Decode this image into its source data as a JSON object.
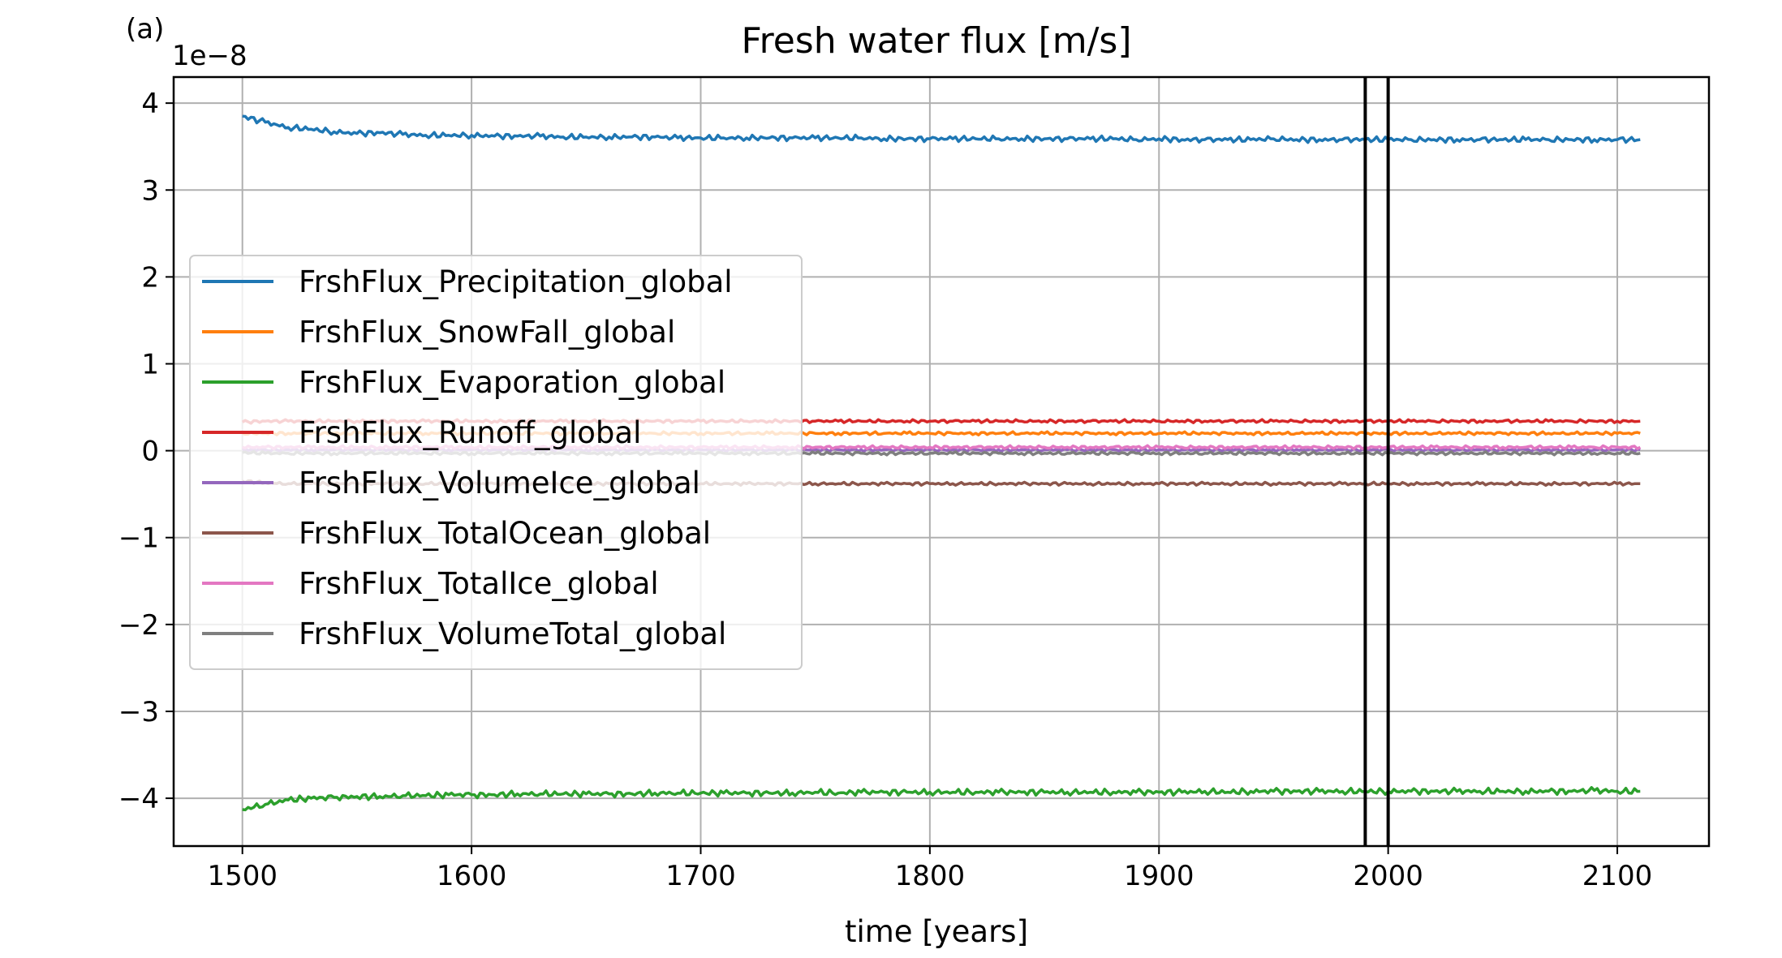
{
  "panel_label": "(a)",
  "chart_data": {
    "type": "line",
    "title": "Fresh water flux [m/s]",
    "xlabel": "time [years]",
    "ylabel": "",
    "y_scale_label": "1e−8",
    "xlim": [
      1470,
      2140
    ],
    "ylim": [
      -4.55,
      4.3
    ],
    "x_ticks": [
      1500,
      1600,
      1700,
      1800,
      1900,
      2000,
      2100
    ],
    "x_tick_labels": [
      "1500",
      "1600",
      "1700",
      "1800",
      "1900",
      "2000",
      "2100"
    ],
    "y_ticks": [
      -4,
      -3,
      -2,
      -1,
      0,
      1,
      2,
      3,
      4
    ],
    "y_tick_labels": [
      "−4",
      "−3",
      "−2",
      "−1",
      "0",
      "1",
      "2",
      "3",
      "4"
    ],
    "grid": true,
    "legend_position": "center-left",
    "vertical_lines": [
      1990,
      2000
    ],
    "x_start": 1500,
    "x_end": 2110,
    "series": [
      {
        "name": "FrshFlux_Precipitation_global",
        "color": "#1f77b4",
        "values": [
          3.85,
          3.78,
          3.72,
          3.7,
          3.67,
          3.65,
          3.66,
          3.64,
          3.63,
          3.63,
          3.63,
          3.62,
          3.62,
          3.62,
          3.61,
          3.61,
          3.61,
          3.61,
          3.61,
          3.6,
          3.6,
          3.6,
          3.6,
          3.6,
          3.6,
          3.6,
          3.6,
          3.6,
          3.59,
          3.59,
          3.59,
          3.59,
          3.59,
          3.59,
          3.59,
          3.59,
          3.59,
          3.59,
          3.59,
          3.58,
          3.59,
          3.58,
          3.58,
          3.58,
          3.58,
          3.59,
          3.58,
          3.58,
          3.58,
          3.58,
          3.58,
          3.58,
          3.58,
          3.58,
          3.58,
          3.58,
          3.58,
          3.58,
          3.58,
          3.58,
          3.58,
          3.58
        ]
      },
      {
        "name": "FrshFlux_SnowFall_global",
        "color": "#ff7f0e",
        "values": [
          0.2,
          0.2,
          0.2,
          0.2,
          0.2,
          0.2,
          0.2,
          0.2,
          0.2,
          0.2,
          0.2,
          0.2,
          0.2,
          0.2,
          0.2,
          0.2,
          0.2,
          0.2,
          0.2,
          0.2,
          0.2,
          0.2,
          0.2,
          0.2,
          0.2,
          0.2,
          0.2,
          0.2,
          0.2,
          0.2,
          0.2,
          0.2,
          0.2,
          0.2,
          0.2,
          0.2,
          0.2,
          0.2,
          0.2,
          0.2,
          0.2,
          0.2,
          0.2,
          0.2,
          0.2,
          0.2,
          0.2,
          0.2,
          0.2,
          0.2,
          0.2,
          0.2,
          0.2,
          0.2,
          0.2,
          0.2,
          0.2,
          0.2,
          0.2,
          0.2,
          0.2,
          0.2
        ]
      },
      {
        "name": "FrshFlux_Evaporation_global",
        "color": "#2ca02c",
        "values": [
          -4.13,
          -4.07,
          -4.02,
          -4.0,
          -3.99,
          -3.98,
          -3.98,
          -3.97,
          -3.97,
          -3.96,
          -3.96,
          -3.96,
          -3.95,
          -3.95,
          -3.95,
          -3.95,
          -3.95,
          -3.95,
          -3.94,
          -3.94,
          -3.94,
          -3.94,
          -3.94,
          -3.94,
          -3.94,
          -3.93,
          -3.94,
          -3.93,
          -3.93,
          -3.93,
          -3.93,
          -3.93,
          -3.93,
          -3.93,
          -3.93,
          -3.93,
          -3.93,
          -3.93,
          -3.93,
          -3.93,
          -3.93,
          -3.93,
          -3.92,
          -3.93,
          -3.92,
          -3.92,
          -3.92,
          -3.92,
          -3.92,
          -3.92,
          -3.92,
          -3.92,
          -3.92,
          -3.92,
          -3.92,
          -3.92,
          -3.92,
          -3.92,
          -3.92,
          -3.91,
          -3.92,
          -3.92
        ]
      },
      {
        "name": "FrshFlux_Runoff_global",
        "color": "#d62728",
        "values": [
          0.33,
          0.34,
          0.34,
          0.34,
          0.34,
          0.34,
          0.34,
          0.34,
          0.34,
          0.34,
          0.34,
          0.34,
          0.34,
          0.34,
          0.34,
          0.34,
          0.34,
          0.34,
          0.34,
          0.34,
          0.34,
          0.34,
          0.34,
          0.34,
          0.34,
          0.34,
          0.34,
          0.34,
          0.34,
          0.34,
          0.34,
          0.34,
          0.34,
          0.34,
          0.34,
          0.34,
          0.34,
          0.34,
          0.34,
          0.34,
          0.34,
          0.34,
          0.34,
          0.34,
          0.34,
          0.34,
          0.34,
          0.34,
          0.34,
          0.34,
          0.34,
          0.34,
          0.34,
          0.34,
          0.34,
          0.34,
          0.34,
          0.34,
          0.34,
          0.34,
          0.34,
          0.34
        ]
      },
      {
        "name": "FrshFlux_VolumeIce_global",
        "color": "#9467bd",
        "values": [
          0.01,
          0.01,
          0.01,
          0.01,
          0.01,
          0.01,
          0.01,
          0.01,
          0.01,
          0.01,
          0.01,
          0.01,
          0.01,
          0.01,
          0.01,
          0.01,
          0.01,
          0.01,
          0.01,
          0.01,
          0.01,
          0.01,
          0.01,
          0.01,
          0.01,
          0.01,
          0.01,
          0.01,
          0.01,
          0.01,
          0.01,
          0.01,
          0.01,
          0.01,
          0.01,
          0.01,
          0.01,
          0.01,
          0.01,
          0.01,
          0.01,
          0.01,
          0.01,
          0.01,
          0.01,
          0.01,
          0.01,
          0.01,
          0.01,
          0.01,
          0.01,
          0.01,
          0.01,
          0.01,
          0.01,
          0.01,
          0.01,
          0.01,
          0.01,
          0.01,
          0.01,
          0.01
        ]
      },
      {
        "name": "FrshFlux_TotalOcean_global",
        "color": "#8c564b",
        "values": [
          -0.35,
          -0.37,
          -0.38,
          -0.38,
          -0.38,
          -0.38,
          -0.38,
          -0.38,
          -0.38,
          -0.38,
          -0.38,
          -0.38,
          -0.38,
          -0.38,
          -0.38,
          -0.38,
          -0.38,
          -0.38,
          -0.38,
          -0.38,
          -0.38,
          -0.38,
          -0.38,
          -0.38,
          -0.38,
          -0.38,
          -0.38,
          -0.38,
          -0.38,
          -0.38,
          -0.38,
          -0.38,
          -0.38,
          -0.38,
          -0.38,
          -0.38,
          -0.38,
          -0.38,
          -0.38,
          -0.38,
          -0.38,
          -0.38,
          -0.38,
          -0.38,
          -0.38,
          -0.38,
          -0.38,
          -0.38,
          -0.38,
          -0.38,
          -0.38,
          -0.38,
          -0.38,
          -0.38,
          -0.38,
          -0.38,
          -0.38,
          -0.38,
          -0.38,
          -0.38,
          -0.38,
          -0.38
        ]
      },
      {
        "name": "FrshFlux_TotalIce_global",
        "color": "#e377c2",
        "values": [
          0.04,
          0.04,
          0.04,
          0.04,
          0.04,
          0.04,
          0.04,
          0.04,
          0.04,
          0.04,
          0.04,
          0.04,
          0.04,
          0.04,
          0.04,
          0.04,
          0.04,
          0.04,
          0.04,
          0.04,
          0.04,
          0.04,
          0.04,
          0.04,
          0.04,
          0.04,
          0.04,
          0.04,
          0.04,
          0.04,
          0.04,
          0.04,
          0.04,
          0.04,
          0.04,
          0.04,
          0.04,
          0.04,
          0.04,
          0.04,
          0.04,
          0.04,
          0.04,
          0.04,
          0.04,
          0.04,
          0.04,
          0.04,
          0.04,
          0.04,
          0.04,
          0.04,
          0.04,
          0.04,
          0.04,
          0.04,
          0.04,
          0.04,
          0.04,
          0.04,
          0.04,
          0.04
        ]
      },
      {
        "name": "FrshFlux_VolumeTotal_global",
        "color": "#7f7f7f",
        "values": [
          -0.02,
          -0.03,
          -0.03,
          -0.03,
          -0.03,
          -0.03,
          -0.03,
          -0.03,
          -0.03,
          -0.03,
          -0.03,
          -0.03,
          -0.03,
          -0.03,
          -0.03,
          -0.03,
          -0.03,
          -0.03,
          -0.03,
          -0.03,
          -0.03,
          -0.03,
          -0.03,
          -0.03,
          -0.03,
          -0.03,
          -0.03,
          -0.03,
          -0.03,
          -0.03,
          -0.03,
          -0.03,
          -0.03,
          -0.03,
          -0.03,
          -0.03,
          -0.03,
          -0.03,
          -0.03,
          -0.03,
          -0.03,
          -0.03,
          -0.03,
          -0.03,
          -0.03,
          -0.03,
          -0.03,
          -0.03,
          -0.03,
          -0.03,
          -0.03,
          -0.03,
          -0.03,
          -0.03,
          -0.03,
          -0.03,
          -0.03,
          -0.03,
          -0.03,
          -0.03,
          -0.03,
          -0.03
        ]
      }
    ]
  }
}
